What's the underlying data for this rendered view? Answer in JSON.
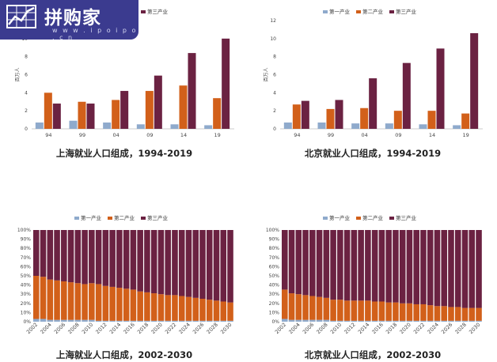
{
  "watermark": {
    "title": "拼购家",
    "url": "w w w . i p o i p o . c n",
    "icon": "rising-chart-icon"
  },
  "colors": {
    "primary": "#8faacc",
    "secondary": "#d2601a",
    "tertiary": "#6b2242"
  },
  "chart_data": [
    {
      "type": "bar",
      "title": "上海就业人口组成，1994-2019",
      "ylabel": "百万人",
      "xlabel": "",
      "categories": [
        "94",
        "99",
        "04",
        "09",
        "14",
        "19"
      ],
      "ylim": [
        0,
        12
      ],
      "yticks": [
        0,
        2,
        4,
        6,
        8,
        10,
        12
      ],
      "grid": false,
      "legend": "top",
      "series": [
        {
          "name": "第一产业",
          "values": [
            0.7,
            0.9,
            0.7,
            0.5,
            0.5,
            0.4
          ]
        },
        {
          "name": "第二产业",
          "values": [
            4.0,
            3.0,
            3.2,
            4.2,
            4.8,
            3.4
          ]
        },
        {
          "name": "第三产业",
          "values": [
            2.8,
            2.8,
            4.2,
            5.9,
            8.4,
            10.0
          ]
        }
      ]
    },
    {
      "type": "bar",
      "title": "北京就业人口组成，1994-2019",
      "ylabel": "百万人",
      "xlabel": "",
      "categories": [
        "94",
        "99",
        "04",
        "09",
        "14",
        "19"
      ],
      "ylim": [
        0,
        12
      ],
      "yticks": [
        0,
        2,
        4,
        6,
        8,
        10,
        12
      ],
      "grid": false,
      "legend": "top",
      "series": [
        {
          "name": "第一产业",
          "values": [
            0.7,
            0.7,
            0.6,
            0.6,
            0.5,
            0.4
          ]
        },
        {
          "name": "第二产业",
          "values": [
            2.7,
            2.2,
            2.3,
            2.0,
            2.0,
            1.7
          ]
        },
        {
          "name": "第三产业",
          "values": [
            3.1,
            3.2,
            5.6,
            7.3,
            8.9,
            10.6
          ]
        }
      ]
    },
    {
      "type": "bar",
      "stacked": true,
      "percent": true,
      "title": "上海就业人口组成，2002-2030",
      "ylabel": "",
      "xlabel": "",
      "categories": [
        "2002",
        "2003",
        "2004",
        "2005",
        "2006",
        "2007",
        "2008",
        "2009",
        "2010",
        "2011",
        "2012",
        "2013",
        "2014",
        "2015",
        "2016",
        "2017",
        "2018",
        "2019",
        "2020",
        "2021",
        "2022",
        "2023",
        "2024",
        "2025",
        "2026",
        "2027",
        "2028",
        "2029",
        "2030"
      ],
      "tick_labels": [
        "2002",
        "2004",
        "2006",
        "2008",
        "2010",
        "2012",
        "2014",
        "2016",
        "2018",
        "2020",
        "2022",
        "2024",
        "2026",
        "2028",
        "2030"
      ],
      "ylim": [
        0,
        100
      ],
      "yticks": [
        "0%",
        "10%",
        "20%",
        "30%",
        "40%",
        "50%",
        "60%",
        "70%",
        "80%",
        "90%",
        "100%"
      ],
      "grid": false,
      "legend": "top",
      "series": [
        {
          "name": "第一产业",
          "values": [
            3,
            3,
            2,
            2,
            2,
            2,
            2,
            2,
            2,
            1,
            1,
            1,
            1,
            1,
            1,
            1,
            1,
            1,
            1,
            1,
            1,
            1,
            1,
            1,
            1,
            1,
            1,
            1,
            1
          ]
        },
        {
          "name": "第二产业",
          "values": [
            47,
            46,
            44,
            43,
            42,
            41,
            40,
            39,
            40,
            40,
            38,
            37,
            36,
            35,
            34,
            32,
            31,
            30,
            29,
            28,
            28,
            27,
            26,
            25,
            24,
            23,
            22,
            21,
            20
          ]
        },
        {
          "name": "第三产业",
          "values": [
            50,
            51,
            54,
            55,
            56,
            57,
            58,
            59,
            58,
            59,
            61,
            62,
            63,
            64,
            65,
            67,
            68,
            69,
            70,
            71,
            71,
            72,
            73,
            74,
            75,
            76,
            77,
            78,
            79
          ]
        }
      ]
    },
    {
      "type": "bar",
      "stacked": true,
      "percent": true,
      "title": "北京就业人口组成，2002-2030",
      "ylabel": "",
      "xlabel": "",
      "categories": [
        "2002",
        "2003",
        "2004",
        "2005",
        "2006",
        "2007",
        "2008",
        "2009",
        "2010",
        "2011",
        "2012",
        "2013",
        "2014",
        "2015",
        "2016",
        "2017",
        "2018",
        "2019",
        "2020",
        "2021",
        "2022",
        "2023",
        "2024",
        "2025",
        "2026",
        "2027",
        "2028",
        "2029",
        "2030"
      ],
      "tick_labels": [
        "2002",
        "2004",
        "2006",
        "2008",
        "2010",
        "2012",
        "2014",
        "2016",
        "2018",
        "2020",
        "2022",
        "2024",
        "2026",
        "2028",
        "2030"
      ],
      "ylim": [
        0,
        100
      ],
      "yticks": [
        "0%",
        "10%",
        "20%",
        "30%",
        "40%",
        "50%",
        "60%",
        "70%",
        "80%",
        "90%",
        "100%"
      ],
      "grid": false,
      "legend": "top",
      "series": [
        {
          "name": "第一产业",
          "values": [
            3,
            2,
            2,
            2,
            2,
            2,
            2,
            1,
            1,
            1,
            1,
            1,
            1,
            1,
            1,
            1,
            1,
            1,
            1,
            1,
            1,
            1,
            1,
            1,
            1,
            1,
            1,
            1,
            1
          ]
        },
        {
          "name": "第二产业",
          "values": [
            32,
            29,
            28,
            27,
            26,
            25,
            24,
            23,
            23,
            22,
            22,
            22,
            22,
            21,
            21,
            20,
            20,
            19,
            19,
            18,
            18,
            17,
            16,
            16,
            15,
            15,
            14,
            14,
            14
          ]
        },
        {
          "name": "第三产业",
          "values": [
            65,
            69,
            70,
            71,
            72,
            73,
            74,
            76,
            76,
            77,
            77,
            77,
            77,
            78,
            78,
            79,
            79,
            80,
            80,
            81,
            81,
            82,
            83,
            83,
            84,
            84,
            85,
            85,
            85
          ]
        }
      ]
    }
  ]
}
